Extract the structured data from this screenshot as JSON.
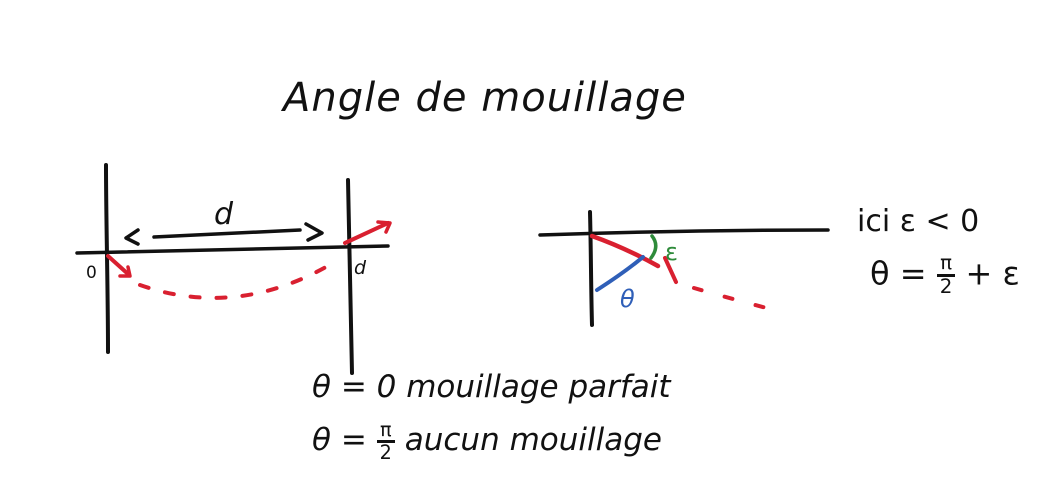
{
  "title": "Angle de mouillage",
  "left_diagram": {
    "distance_label": "d",
    "origin_label": "0",
    "end_label": "d"
  },
  "right_diagram": {
    "epsilon_label": "ε",
    "theta_label": "θ"
  },
  "side_note": {
    "line1": "ici  ε < 0",
    "theta_lhs": "θ =",
    "pi": "π",
    "two": "2",
    "plus_eps": "+ ε"
  },
  "bottom_notes": {
    "line1": "θ = 0  mouillage parfait",
    "line2_lhs": "θ =",
    "pi": "π",
    "two": "2",
    "line2_rhs": "aucun mouillage"
  },
  "colors": {
    "ink": "#111111",
    "red": "#d92030",
    "green": "#2e8b3a",
    "blue": "#2f5fb8"
  }
}
